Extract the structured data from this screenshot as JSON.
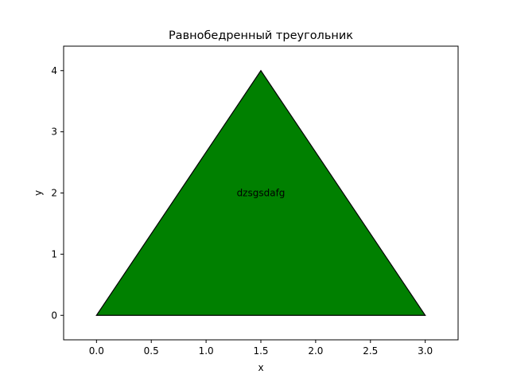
{
  "chart_data": {
    "type": "area",
    "title": "Равнобедренный треугольник",
    "xlabel": "x",
    "ylabel": "y",
    "xlim": [
      -0.3,
      3.3
    ],
    "ylim": [
      -0.4,
      4.4
    ],
    "grid": false,
    "x_ticks": [
      0.0,
      0.5,
      1.0,
      1.5,
      2.0,
      2.5,
      3.0
    ],
    "x_tick_labels": [
      "0.0",
      "0.5",
      "1.0",
      "1.5",
      "2.0",
      "2.5",
      "3.0"
    ],
    "y_ticks": [
      0,
      1,
      2,
      3,
      4
    ],
    "y_tick_labels": [
      "0",
      "1",
      "2",
      "3",
      "4"
    ],
    "shape": {
      "vertices": [
        [
          0.0,
          0.0
        ],
        [
          1.5,
          4.0
        ],
        [
          3.0,
          0.0
        ]
      ],
      "fill_color": "#008000",
      "edge_color": "#000000"
    },
    "annotations": [
      {
        "text": "dzsgsdafg",
        "x": 1.5,
        "y": 2.0
      }
    ]
  }
}
